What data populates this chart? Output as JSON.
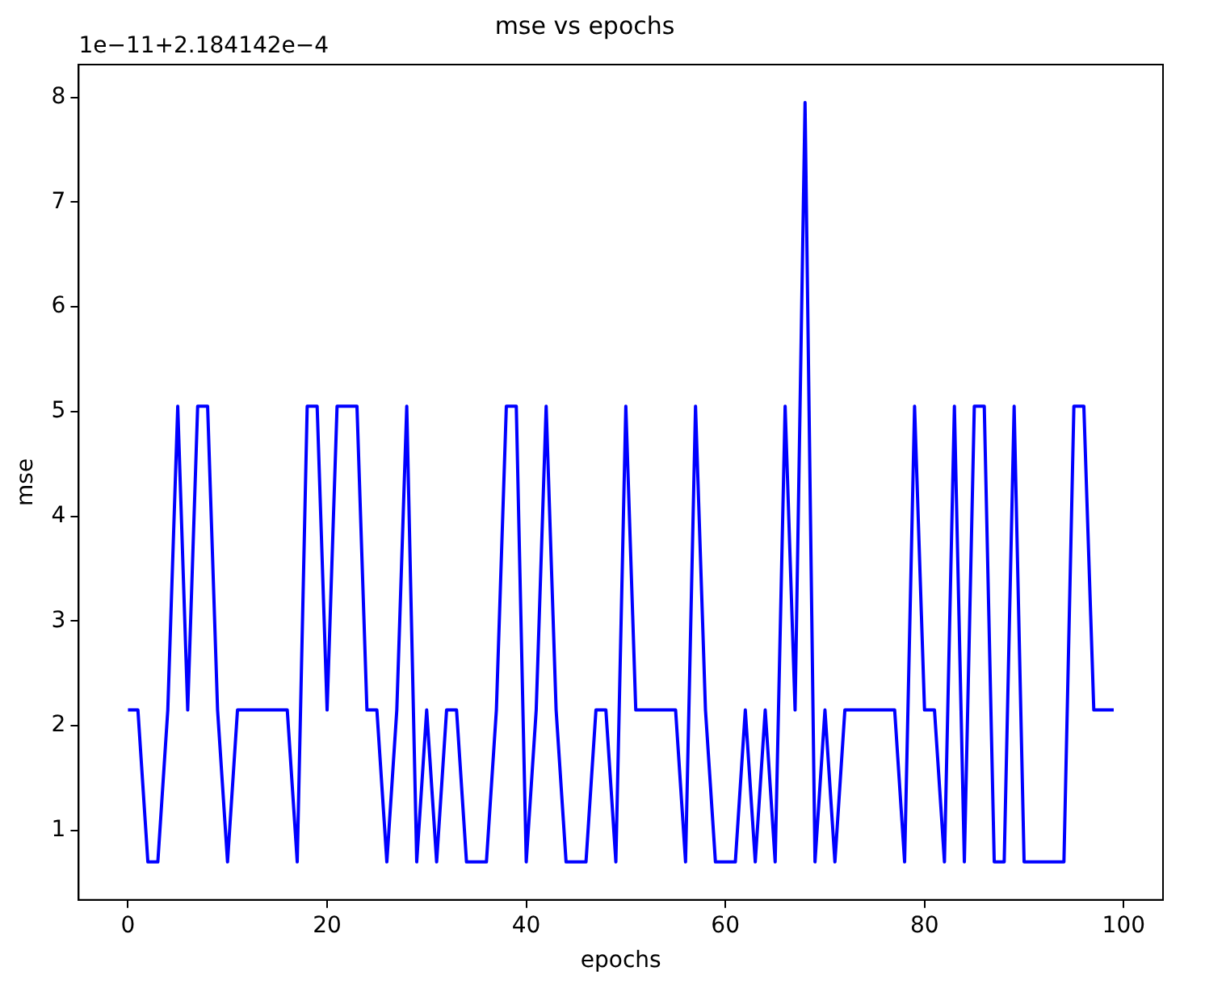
{
  "chart_data": {
    "type": "line",
    "title": "mse vs epochs",
    "xlabel": "epochs",
    "ylabel": "mse",
    "annotations": [
      "1e−11+2.184142e−4"
    ],
    "x": [
      0,
      1,
      2,
      3,
      4,
      5,
      6,
      7,
      8,
      9,
      10,
      11,
      12,
      13,
      14,
      15,
      16,
      17,
      18,
      19,
      20,
      21,
      22,
      23,
      24,
      25,
      26,
      27,
      28,
      29,
      30,
      31,
      32,
      33,
      34,
      35,
      36,
      37,
      38,
      39,
      40,
      41,
      42,
      43,
      44,
      45,
      46,
      47,
      48,
      49,
      50,
      51,
      52,
      53,
      54,
      55,
      56,
      57,
      58,
      59,
      60,
      61,
      62,
      63,
      64,
      65,
      66,
      67,
      68,
      69,
      70,
      71,
      72,
      73,
      74,
      75,
      76,
      77,
      78,
      79,
      80,
      81,
      82,
      83,
      84,
      85,
      86,
      87,
      88,
      89,
      90,
      91,
      92,
      93,
      94,
      95,
      96,
      97,
      98,
      99
    ],
    "series": [
      {
        "color": "#0000ff",
        "values": [
          2.15,
          2.15,
          0.7,
          0.7,
          2.15,
          5.05,
          2.15,
          5.05,
          5.05,
          2.15,
          0.7,
          2.15,
          2.15,
          2.15,
          2.15,
          2.15,
          2.15,
          0.7,
          5.05,
          5.05,
          2.15,
          5.05,
          5.05,
          5.05,
          2.15,
          2.15,
          0.7,
          2.15,
          5.05,
          0.7,
          2.15,
          0.7,
          2.15,
          2.15,
          0.7,
          0.7,
          0.7,
          2.15,
          5.05,
          5.05,
          0.7,
          2.15,
          5.05,
          2.15,
          0.7,
          0.7,
          0.7,
          2.15,
          2.15,
          0.7,
          5.05,
          2.15,
          2.15,
          2.15,
          2.15,
          2.15,
          0.7,
          5.05,
          2.15,
          0.7,
          0.7,
          0.7,
          2.15,
          0.7,
          2.15,
          0.7,
          5.05,
          2.15,
          7.95,
          0.7,
          2.15,
          0.7,
          2.15,
          2.15,
          2.15,
          2.15,
          2.15,
          2.15,
          0.7,
          5.05,
          2.15,
          2.15,
          0.7,
          5.05,
          0.7,
          5.05,
          5.05,
          0.7,
          0.7,
          5.05,
          0.7,
          0.7,
          0.7,
          0.7,
          0.7,
          5.05,
          5.05,
          2.15,
          2.15,
          2.15
        ]
      }
    ],
    "xlim": [
      -4.95,
      103.95
    ],
    "xticks": [
      0,
      20,
      40,
      60,
      80,
      100
    ],
    "ylim": [
      0.3375,
      8.3125
    ],
    "yticks": [
      1,
      2,
      3,
      4,
      5,
      6,
      7,
      8
    ],
    "grid": false,
    "legend": false,
    "marker": "none",
    "line_style": "solid"
  }
}
